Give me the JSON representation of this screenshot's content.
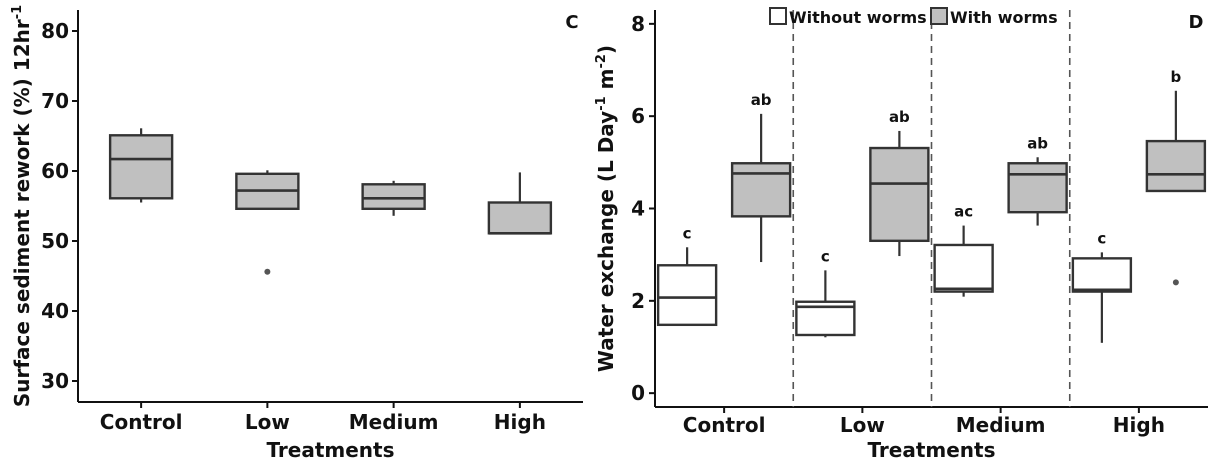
{
  "chart_data": [
    {
      "type": "boxplot",
      "panel_label": "C",
      "xlabel": "Treatments",
      "ylabel": "Surface sediment rework (%) 12hr",
      "ylabel_sup": "-1",
      "ylim": [
        27,
        83
      ],
      "yticks": [
        30,
        40,
        50,
        60,
        70,
        80
      ],
      "categories": [
        "Control",
        "Low",
        "Medium",
        "High"
      ],
      "fill_color": "#c0c0c0",
      "boxes": [
        {
          "category": "Control",
          "whisker_low": 55.5,
          "q1": 56.1,
          "median": 61.7,
          "q3": 65.1,
          "whisker_high": 66.1,
          "outliers": []
        },
        {
          "category": "Low",
          "whisker_low": 54.6,
          "q1": 54.6,
          "median": 57.2,
          "q3": 59.6,
          "whisker_high": 60.1,
          "outliers": [
            45.6
          ]
        },
        {
          "category": "Medium",
          "whisker_low": 53.6,
          "q1": 54.6,
          "median": 56.1,
          "q3": 58.1,
          "whisker_high": 58.6,
          "outliers": []
        },
        {
          "category": "High",
          "whisker_low": 51.1,
          "q1": 51.1,
          "median": 51.1,
          "q3": 55.5,
          "whisker_high": 59.8,
          "outliers": []
        }
      ]
    },
    {
      "type": "boxplot",
      "panel_label": "D",
      "xlabel": "Treatments",
      "ylabel_parts": [
        "Water exchange (L Day",
        "-1",
        " m",
        "-2",
        ")"
      ],
      "ylim": [
        -0.3,
        8.3
      ],
      "yticks": [
        0,
        2,
        4,
        6,
        8
      ],
      "categories": [
        "Control",
        "Low",
        "Medium",
        "High"
      ],
      "legend": [
        {
          "label": "Without worms",
          "color": "#ffffff"
        },
        {
          "label": "With worms",
          "color": "#c0c0c0"
        }
      ],
      "legend_position": "top",
      "groups": [
        {
          "category": "Control",
          "without": {
            "whisker_low": 1.48,
            "q1": 1.48,
            "median": 2.07,
            "q3": 2.77,
            "whisker_high": 3.16,
            "outliers": [],
            "letter": "c"
          },
          "with": {
            "whisker_low": 2.84,
            "q1": 3.83,
            "median": 4.76,
            "q3": 4.98,
            "whisker_high": 6.05,
            "outliers": [],
            "letter": "ab"
          }
        },
        {
          "category": "Low",
          "without": {
            "whisker_low": 1.21,
            "q1": 1.26,
            "median": 1.87,
            "q3": 1.98,
            "whisker_high": 2.66,
            "outliers": [],
            "letter": "c"
          },
          "with": {
            "whisker_low": 2.97,
            "q1": 3.3,
            "median": 4.54,
            "q3": 5.31,
            "whisker_high": 5.68,
            "outliers": [],
            "letter": "ab"
          }
        },
        {
          "category": "Medium",
          "without": {
            "whisker_low": 2.09,
            "q1": 2.2,
            "median": 2.26,
            "q3": 3.21,
            "whisker_high": 3.63,
            "outliers": [],
            "letter": "ac"
          },
          "with": {
            "whisker_low": 3.63,
            "q1": 3.92,
            "median": 4.74,
            "q3": 4.98,
            "whisker_high": 5.11,
            "outliers": [],
            "letter": "ab"
          }
        },
        {
          "category": "High",
          "without": {
            "whisker_low": 1.09,
            "q1": 2.2,
            "median": 2.24,
            "q3": 2.92,
            "whisker_high": 3.05,
            "outliers": [],
            "letter": "c"
          },
          "with": {
            "whisker_low": 4.38,
            "q1": 4.38,
            "median": 4.74,
            "q3": 5.46,
            "whisker_high": 6.55,
            "outliers": [
              2.4
            ],
            "letter": "b"
          }
        }
      ]
    }
  ]
}
